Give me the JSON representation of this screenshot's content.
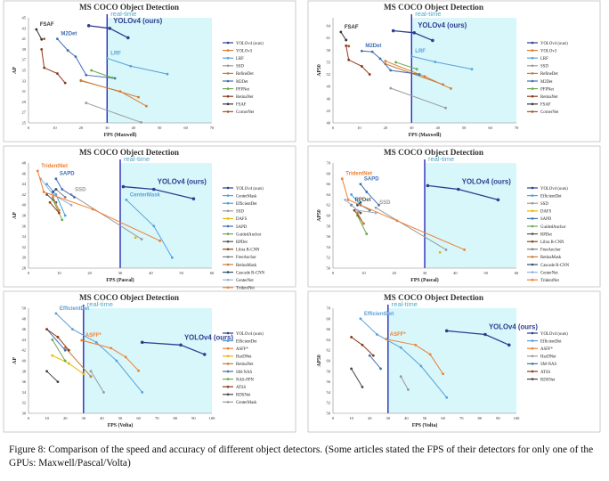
{
  "caption": "Figure 8: Comparison of the speed and accuracy of different object detectors. (Some articles stated the FPS of their detectors for only one of the GPUs: Maxwell/Pascal/Volta)",
  "colors": {
    "realtime_bg": "#d7f7fb",
    "realtime_line": "#2a2ab8",
    "realtime_text": "#4aa8c8"
  },
  "chart_data": [
    {
      "type": "line",
      "title": "MS COCO Object Detection",
      "realtime_label": "real-time",
      "realtime_fps": 30,
      "xlabel": "FPS (Maxwell)",
      "ylabel": "AP",
      "xlim": [
        0,
        70
      ],
      "ylim": [
        25,
        45
      ],
      "xticks": [
        0,
        10,
        20,
        30,
        40,
        50,
        60,
        70
      ],
      "yticks": [
        25,
        27,
        29,
        31,
        33,
        35,
        37,
        39,
        41,
        43,
        45
      ],
      "series": [
        {
          "name": "YOLOv4 (ours)",
          "color": "#2f3d8f",
          "label": "YOLOv4 (ours)",
          "x": [
            23,
            31,
            38
          ],
          "y": [
            43.5,
            43.0,
            41.2
          ]
        },
        {
          "name": "YOLOv3",
          "color": "#e07a2a",
          "x": [
            20,
            35,
            45
          ],
          "y": [
            33.0,
            31.0,
            28.2
          ]
        },
        {
          "name": "LRF",
          "color": "#5aa0d8",
          "label": "LRF",
          "x": [
            30,
            39,
            53
          ],
          "y": [
            37.3,
            35.8,
            34.3
          ]
        },
        {
          "name": "SSD",
          "color": "#9a9a9a",
          "x": [
            22,
            43
          ],
          "y": [
            28.8,
            25.1
          ]
        },
        {
          "name": "RefineDet",
          "color": "#c87d3a",
          "x": [
            20,
            42
          ],
          "y": [
            33.1,
            29.9
          ]
        },
        {
          "name": "M2Det",
          "color": "#3f6fb4",
          "label": "M2Det",
          "x": [
            11,
            15,
            18,
            22,
            33
          ],
          "y": [
            41.0,
            38.8,
            37.6,
            34.1,
            33.5
          ]
        },
        {
          "name": "PFPNet",
          "color": "#6aa84f",
          "x": [
            24,
            32
          ],
          "y": [
            35.0,
            33.6
          ]
        },
        {
          "name": "RetinaNet",
          "color": "#8b3a1a",
          "x": [
            5,
            6,
            11,
            14
          ],
          "y": [
            39.0,
            35.5,
            34.4,
            32.6
          ]
        },
        {
          "name": "FSAF",
          "color": "#333333",
          "label": "FSAF",
          "x": [
            3,
            5
          ],
          "y": [
            42.8,
            40.9
          ]
        },
        {
          "name": "CornerNet",
          "color": "#a0522d",
          "x": [
            6
          ],
          "y": [
            41.0
          ]
        }
      ]
    },
    {
      "type": "line",
      "title": "MS COCO Object Detection",
      "realtime_label": "real-time",
      "realtime_fps": 30,
      "xlabel": "FPS (Maxwell)",
      "ylabel": "AP50",
      "xlim": [
        0,
        70
      ],
      "ylim": [
        40,
        66
      ],
      "xticks": [
        0,
        10,
        20,
        30,
        40,
        50,
        60,
        70
      ],
      "yticks": [
        40,
        43,
        46,
        49,
        52,
        55,
        58,
        61,
        64
      ],
      "series": [
        {
          "name": "YOLOv4 (ours)",
          "color": "#2f3d8f",
          "label": "YOLOv4 (ours)",
          "x": [
            23,
            31,
            38
          ],
          "y": [
            62.8,
            62.3,
            60.4
          ]
        },
        {
          "name": "YOLOv3",
          "color": "#e07a2a",
          "x": [
            20,
            35,
            45
          ],
          "y": [
            55.3,
            51.5,
            48.5
          ]
        },
        {
          "name": "LRF",
          "color": "#5aa0d8",
          "label": "LRF",
          "x": [
            30,
            39,
            53
          ],
          "y": [
            56.5,
            55.1,
            53.3
          ]
        },
        {
          "name": "SSD",
          "color": "#9a9a9a",
          "x": [
            22,
            43
          ],
          "y": [
            48.6,
            43.7
          ]
        },
        {
          "name": "RefineDet",
          "color": "#c87d3a",
          "x": [
            20,
            42
          ],
          "y": [
            54.6,
            49.5
          ]
        },
        {
          "name": "M2Det",
          "color": "#3f6fb4",
          "label": "M2Det",
          "x": [
            11,
            15,
            18,
            22,
            33
          ],
          "y": [
            57.8,
            57.6,
            55.9,
            53.0,
            52.0
          ]
        },
        {
          "name": "PFPNet",
          "color": "#6aa84f",
          "x": [
            24,
            32
          ],
          "y": [
            55.0,
            53.3
          ]
        },
        {
          "name": "RetinaNet",
          "color": "#8b3a1a",
          "x": [
            5,
            6,
            11,
            14
          ],
          "y": [
            59.1,
            55.6,
            54.0,
            52.0
          ]
        },
        {
          "name": "FSAF",
          "color": "#333333",
          "label": "FSAF",
          "x": [
            3,
            5
          ],
          "y": [
            62.5,
            60.5
          ]
        },
        {
          "name": "CornerNet",
          "color": "#a0522d",
          "x": [
            6
          ],
          "y": [
            59.0
          ]
        }
      ]
    },
    {
      "type": "line",
      "title": "MS COCO Object Detection",
      "realtime_label": "real-time",
      "realtime_fps": 30,
      "xlabel": "FPS (Pascal)",
      "ylabel": "AP",
      "xlim": [
        0,
        60
      ],
      "ylim": [
        28,
        48
      ],
      "xticks": [
        0,
        10,
        20,
        30,
        40,
        50,
        60
      ],
      "yticks": [
        28,
        30,
        32,
        34,
        36,
        38,
        40,
        42,
        44,
        46,
        48
      ],
      "series": [
        {
          "name": "YOLOv4 (ours)",
          "color": "#2f3d8f",
          "label": "YOLOv4 (ours)",
          "x": [
            31,
            41,
            54
          ],
          "y": [
            43.5,
            43.0,
            41.2
          ]
        },
        {
          "name": "CenterMask",
          "color": "#5aa0d8",
          "label": "CenterMask",
          "x": [
            32,
            41,
            47
          ],
          "y": [
            41.0,
            36.0,
            30.0
          ]
        },
        {
          "name": "EfficientDet",
          "color": "#4aa0e0",
          "x": [
            6,
            9,
            12
          ],
          "y": [
            44.0,
            42.0,
            38.0
          ]
        },
        {
          "name": "SSD",
          "color": "#9a9a9a",
          "label": "SSD",
          "x": [
            14,
            37
          ],
          "y": [
            42.0,
            33.5
          ]
        },
        {
          "name": "DAFS",
          "color": "#e6b800",
          "x": [
            35
          ],
          "y": [
            33.8
          ]
        },
        {
          "name": "SAPD",
          "color": "#3f6fb4",
          "label": "SAPD",
          "x": [
            9,
            11,
            15
          ],
          "y": [
            45.0,
            43.0,
            41.5
          ]
        },
        {
          "name": "GuidedAnchor",
          "color": "#6aa84f",
          "x": [
            8,
            11
          ],
          "y": [
            41.0,
            37.2
          ]
        },
        {
          "name": "RPDet",
          "color": "#555555",
          "x": [
            6,
            9
          ],
          "y": [
            42.0,
            40.5
          ]
        },
        {
          "name": "Libra R-CNN",
          "color": "#8b4513",
          "x": [
            7,
            10
          ],
          "y": [
            40.5,
            38.5
          ]
        },
        {
          "name": "FreeAnchor",
          "color": "#7f7f7f",
          "x": [
            9,
            12
          ],
          "y": [
            43.0,
            41.5
          ]
        },
        {
          "name": "RetinaMask",
          "color": "#c87d3a",
          "x": [
            8,
            10
          ],
          "y": [
            41.5,
            39.0
          ]
        },
        {
          "name": "Cascade R-CNN",
          "color": "#2f4f6f",
          "x": [
            8,
            9
          ],
          "y": [
            42.5,
            43.0
          ]
        },
        {
          "name": "CenterNet",
          "color": "#9ab0d8",
          "x": [
            4,
            8,
            14
          ],
          "y": [
            45.0,
            42.0,
            40.0
          ]
        },
        {
          "name": "TridentNet",
          "color": "#f07f30",
          "label": "TridentNet",
          "x": [
            3,
            5,
            21,
            43
          ],
          "y": [
            46.5,
            42.5,
            39.2,
            33.2
          ]
        }
      ]
    },
    {
      "type": "line",
      "title": "MS COCO Object Detection",
      "realtime_label": "real-time",
      "realtime_fps": 30,
      "xlabel": "FPS (Pascal)",
      "ylabel": "AP50",
      "xlim": [
        0,
        60
      ],
      "ylim": [
        50,
        70
      ],
      "xticks": [
        0,
        10,
        20,
        30,
        40,
        50,
        60
      ],
      "yticks": [
        50,
        52,
        54,
        56,
        58,
        60,
        62,
        64,
        66,
        68,
        70
      ],
      "series": [
        {
          "name": "YOLOv4 (ours)",
          "color": "#2f3d8f",
          "label": "YOLOv4 (ours)",
          "x": [
            31,
            41,
            54
          ],
          "y": [
            65.7,
            65.0,
            63.0
          ]
        },
        {
          "name": "EfficientDet",
          "color": "#4aa0e0",
          "x": [
            6,
            9
          ],
          "y": [
            64.0,
            62.0
          ]
        },
        {
          "name": "SSD",
          "color": "#9a9a9a",
          "label": "SSD",
          "x": [
            14,
            37
          ],
          "y": [
            61.5,
            53.5
          ]
        },
        {
          "name": "DAFS",
          "color": "#e6b800",
          "x": [
            35
          ],
          "y": [
            53.0
          ]
        },
        {
          "name": "SAPD",
          "color": "#3f6fb4",
          "label": "SAPD",
          "x": [
            9,
            11,
            15
          ],
          "y": [
            66.0,
            64.5,
            62.0
          ]
        },
        {
          "name": "GuidedAnchor",
          "color": "#6aa84f",
          "x": [
            8,
            11
          ],
          "y": [
            60.0,
            56.5
          ]
        },
        {
          "name": "RPDet",
          "color": "#555555",
          "label": "RPDet",
          "x": [
            6,
            9
          ],
          "y": [
            62.0,
            60.5
          ]
        },
        {
          "name": "Libra R-CNN",
          "color": "#8b4513",
          "x": [
            7,
            10
          ],
          "y": [
            61.0,
            58.5
          ]
        },
        {
          "name": "FreeAnchor",
          "color": "#7f7f7f",
          "x": [
            9,
            12
          ],
          "y": [
            62.0,
            61.0
          ]
        },
        {
          "name": "RetinaMask",
          "color": "#c87d3a",
          "x": [
            8,
            10
          ],
          "y": [
            60.5,
            58.5
          ]
        },
        {
          "name": "Cascade R-CNN",
          "color": "#2f4f6f",
          "x": [
            8,
            9
          ],
          "y": [
            62.0,
            62.5
          ]
        },
        {
          "name": "CenterNet",
          "color": "#9ab0d8",
          "x": [
            4,
            8,
            14
          ],
          "y": [
            63.0,
            61.0,
            60.5
          ]
        },
        {
          "name": "TridentNet",
          "color": "#f07f30",
          "label": "TridentNet",
          "x": [
            3,
            5,
            21,
            43
          ],
          "y": [
            67.0,
            63.0,
            59.0,
            53.5
          ]
        }
      ]
    },
    {
      "type": "line",
      "title": "MS COCO Object Detection",
      "realtime_label": "real-time",
      "realtime_fps": 30,
      "xlabel": "FPS (Volta)",
      "ylabel": "AP",
      "xlim": [
        0,
        100
      ],
      "ylim": [
        30,
        50
      ],
      "xticks": [
        0,
        10,
        20,
        30,
        40,
        50,
        60,
        70,
        80,
        90,
        100
      ],
      "yticks": [
        30,
        32,
        34,
        36,
        38,
        40,
        42,
        44,
        46,
        48,
        50
      ],
      "series": [
        {
          "name": "YOLOv4 (ours)",
          "color": "#2f3d8f",
          "label": "YOLOv4 (ours)",
          "x": [
            62,
            83,
            96
          ],
          "y": [
            43.5,
            43.0,
            41.2
          ]
        },
        {
          "name": "EfficientDet",
          "color": "#5aa0d8",
          "label": "EfficientDet",
          "x": [
            15,
            24,
            37,
            48,
            62
          ],
          "y": [
            49.0,
            46.0,
            43.5,
            40.0,
            34.0
          ]
        },
        {
          "name": "ASFF*",
          "color": "#f07f30",
          "label": "ASFF*",
          "x": [
            29,
            45,
            53,
            60
          ],
          "y": [
            43.9,
            42.4,
            40.7,
            38.1
          ]
        },
        {
          "name": "HarDNet",
          "color": "#e6b800",
          "x": [
            13,
            22,
            30
          ],
          "y": [
            41.0,
            39.5,
            37.5
          ]
        },
        {
          "name": "RetinaNet",
          "color": "#c87d3a",
          "x": [
            20,
            34
          ],
          "y": [
            42.5,
            37.0
          ]
        },
        {
          "name": "SM-NAS",
          "color": "#3f6fb4",
          "x": [
            10,
            20
          ],
          "y": [
            46.0,
            42.0
          ]
        },
        {
          "name": "NAS-FPN",
          "color": "#6aa84f",
          "x": [
            13,
            20
          ],
          "y": [
            44.0,
            40.0
          ]
        },
        {
          "name": "ATSS",
          "color": "#8b3a1a",
          "x": [
            10,
            16,
            22
          ],
          "y": [
            46.0,
            44.5,
            42.0
          ]
        },
        {
          "name": "RDSNet",
          "color": "#444444",
          "x": [
            10,
            16
          ],
          "y": [
            38.0,
            36.0
          ]
        },
        {
          "name": "CenterMask",
          "color": "#999999",
          "x": [
            34,
            41
          ],
          "y": [
            38.0,
            34.0
          ]
        }
      ]
    },
    {
      "type": "line",
      "title": "MS COCO Object Detection",
      "realtime_label": "real-time",
      "realtime_fps": 30,
      "xlabel": "FPS (Volta)",
      "ylabel": "AP50",
      "xlim": [
        0,
        100
      ],
      "ylim": [
        50,
        70
      ],
      "xticks": [
        0,
        10,
        20,
        30,
        40,
        50,
        60,
        70,
        80,
        90,
        100
      ],
      "yticks": [
        50,
        52,
        54,
        56,
        58,
        60,
        62,
        64,
        66,
        68,
        70
      ],
      "series": [
        {
          "name": "YOLOv4 (ours)",
          "color": "#2f3d8f",
          "label": "YOLOv4 (ours)",
          "x": [
            62,
            83,
            96
          ],
          "y": [
            65.7,
            65.0,
            63.0
          ]
        },
        {
          "name": "EfficientDet",
          "color": "#5aa0d8",
          "label": "EfficientDet",
          "x": [
            15,
            24,
            37,
            48,
            62
          ],
          "y": [
            68.0,
            65.0,
            62.5,
            59.0,
            53.0
          ]
        },
        {
          "name": "ASFF*",
          "color": "#f07f30",
          "label": "ASFF*",
          "x": [
            29,
            45,
            53,
            60
          ],
          "y": [
            64.1,
            63.0,
            61.2,
            57.5
          ]
        },
        {
          "name": "HarDNet",
          "color": "#9a9a9a",
          "x": [
            37,
            41
          ],
          "y": [
            57.0,
            54.5
          ]
        },
        {
          "name": "SM-NAS",
          "color": "#3f6fb4",
          "x": [
            20,
            26
          ],
          "y": [
            61.0,
            58.5
          ]
        },
        {
          "name": "ATSS",
          "color": "#8b3a1a",
          "x": [
            10,
            16,
            22
          ],
          "y": [
            64.5,
            63.0,
            61.0
          ]
        },
        {
          "name": "RDSNet",
          "color": "#444444",
          "x": [
            10,
            16
          ],
          "y": [
            58.5,
            55.0
          ]
        }
      ]
    }
  ]
}
